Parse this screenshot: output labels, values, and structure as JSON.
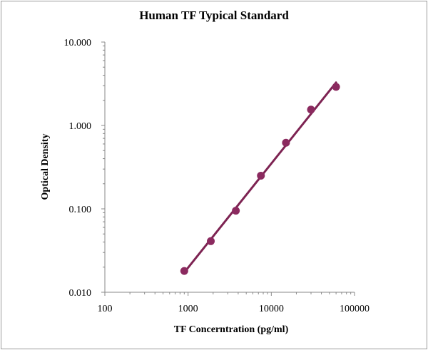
{
  "chart_data": {
    "type": "scatter",
    "title": "Human TF Typical Standard",
    "xlabel": "TF Concerntration (pg/ml)",
    "ylabel": "Optical Density",
    "x_scale": "log",
    "y_scale": "log",
    "xlim": [
      100,
      100000
    ],
    "ylim": [
      0.01,
      10
    ],
    "x_tick_labels": [
      "100",
      "1000",
      "10000",
      "100000"
    ],
    "y_tick_labels": [
      "10.000",
      "1.000",
      "0.100",
      "0.010"
    ],
    "grid": false,
    "legend": "none",
    "series": [
      {
        "x": [
          900,
          1875,
          3750,
          7500,
          15000,
          30000,
          60000
        ],
        "y": [
          0.018,
          0.041,
          0.095,
          0.25,
          0.62,
          1.55,
          2.9
        ],
        "marker_color": "#8b2a5f",
        "line_color": "#7d2352",
        "trendline": "linear-fit (log-log)"
      }
    ]
  }
}
